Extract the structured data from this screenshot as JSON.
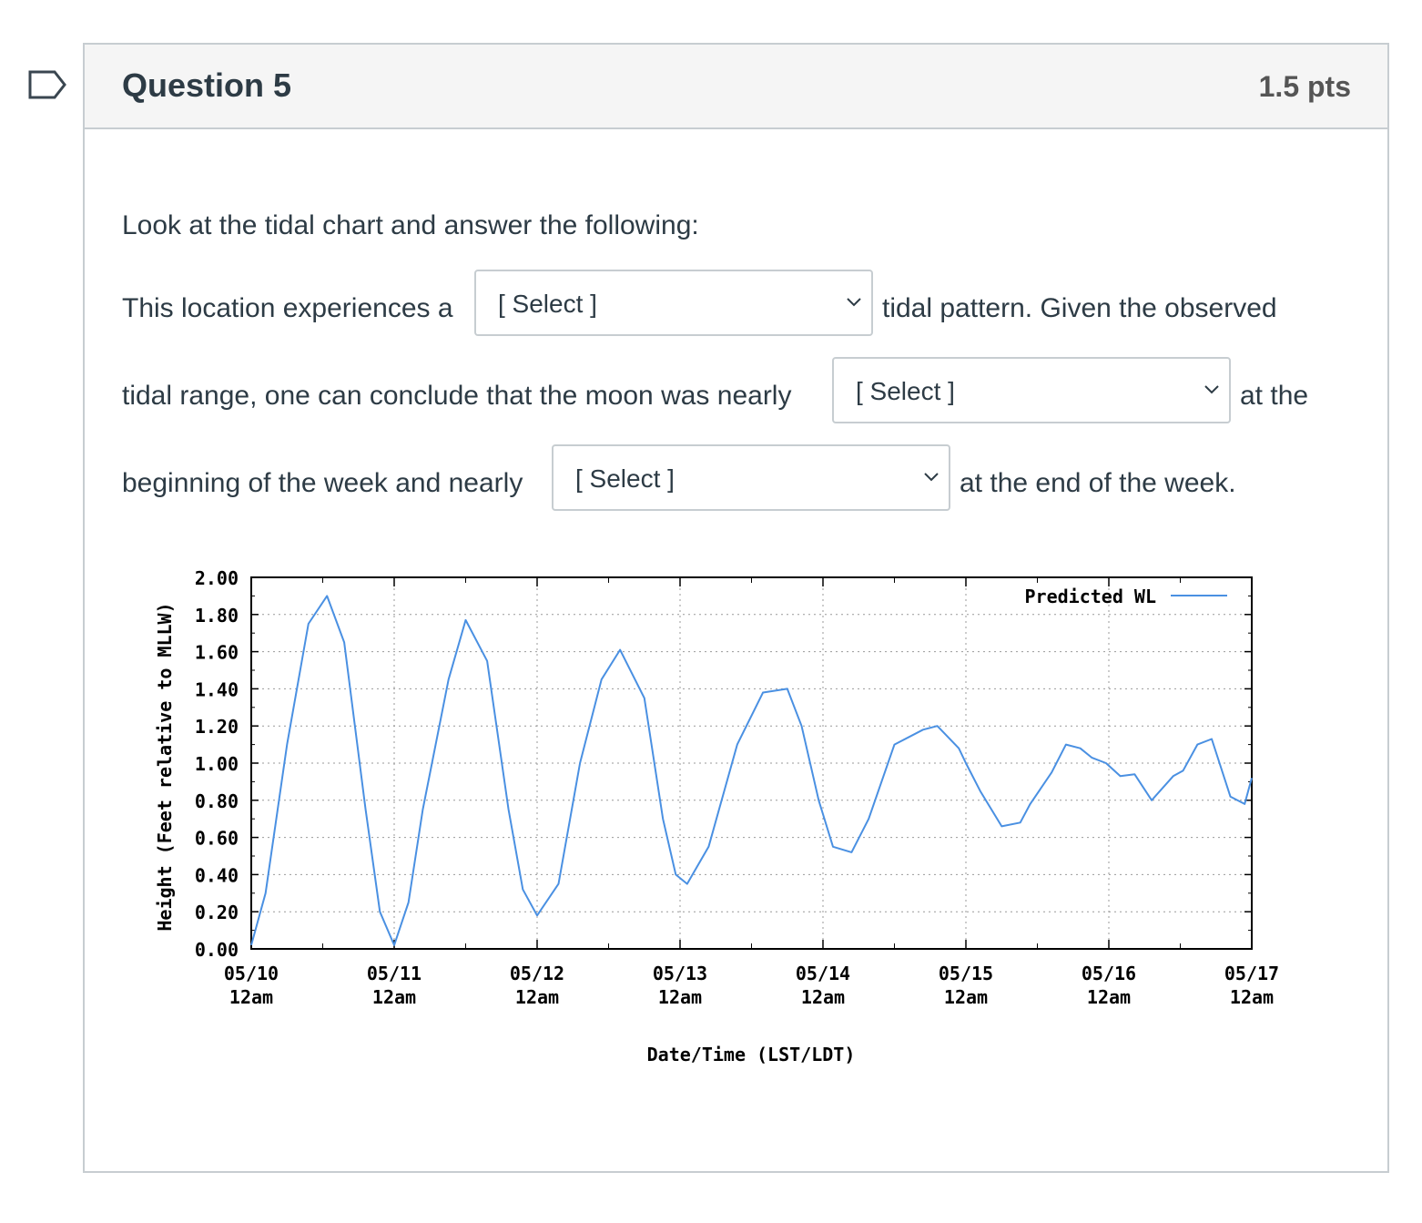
{
  "question": {
    "title": "Question 5",
    "points": "1.5 pts",
    "flag_icon": "flag-outline-icon"
  },
  "prompt": {
    "intro": "Look at the tidal chart and answer the following:",
    "line1_before": "This location experiences a",
    "line1_after": "tidal pattern.  Given the observed",
    "line2_before": "tidal range, one can conclude that the moon was nearly",
    "line2_after": "at the",
    "line3_before": "beginning of the week and nearly",
    "line3_after": "at the end of the week."
  },
  "dropdowns": {
    "tidal_pattern": "[ Select ]",
    "moon_beginning": "[ Select ]",
    "moon_end": "[ Select ]"
  },
  "colors": {
    "series": "#4a90e2",
    "border": "#c7cdd1",
    "header_bg": "#f5f5f5"
  },
  "chart_data": {
    "type": "line",
    "xlabel": "Date/Time (LST/LDT)",
    "ylabel": "Height (Feet relative to MLLW)",
    "ylim": [
      0,
      2
    ],
    "xlim_days": [
      0,
      7
    ],
    "grid": true,
    "legend_position": "top-right",
    "y_ticks": [
      "0.00",
      "0.20",
      "0.40",
      "0.60",
      "0.80",
      "1.00",
      "1.20",
      "1.40",
      "1.60",
      "1.80",
      "2.00"
    ],
    "x_ticks": [
      {
        "date": "05/10",
        "time": "12am"
      },
      {
        "date": "05/11",
        "time": "12am"
      },
      {
        "date": "05/12",
        "time": "12am"
      },
      {
        "date": "05/13",
        "time": "12am"
      },
      {
        "date": "05/14",
        "time": "12am"
      },
      {
        "date": "05/15",
        "time": "12am"
      },
      {
        "date": "05/16",
        "time": "12am"
      },
      {
        "date": "05/17",
        "time": "12am"
      }
    ],
    "series": [
      {
        "name": "Predicted WL",
        "x_days": [
          0,
          0.1,
          0.25,
          0.4,
          0.53,
          0.65,
          0.8,
          0.9,
          1.0,
          1.1,
          1.2,
          1.38,
          1.5,
          1.65,
          1.8,
          1.9,
          2.0,
          2.15,
          2.3,
          2.45,
          2.58,
          2.75,
          2.88,
          2.97,
          3.05,
          3.2,
          3.4,
          3.58,
          3.75,
          3.85,
          3.97,
          4.07,
          4.2,
          4.32,
          4.5,
          4.7,
          4.8,
          4.95,
          5.0,
          5.1,
          5.25,
          5.38,
          5.45,
          5.6,
          5.7,
          5.8,
          5.88,
          5.98,
          6.08,
          6.18,
          6.3,
          6.45,
          6.52,
          6.62,
          6.72,
          6.85,
          6.95,
          7.0
        ],
        "y": [
          0.02,
          0.3,
          1.1,
          1.75,
          1.9,
          1.65,
          0.75,
          0.2,
          0.02,
          0.25,
          0.75,
          1.45,
          1.77,
          1.55,
          0.75,
          0.32,
          0.18,
          0.35,
          1.0,
          1.45,
          1.61,
          1.35,
          0.7,
          0.4,
          0.35,
          0.55,
          1.1,
          1.38,
          1.4,
          1.2,
          0.8,
          0.55,
          0.52,
          0.7,
          1.1,
          1.18,
          1.2,
          1.08,
          1.0,
          0.85,
          0.66,
          0.68,
          0.78,
          0.95,
          1.1,
          1.08,
          1.03,
          1.0,
          0.93,
          0.94,
          0.8,
          0.93,
          0.96,
          1.1,
          1.13,
          0.82,
          0.78,
          0.92
        ]
      }
    ]
  }
}
